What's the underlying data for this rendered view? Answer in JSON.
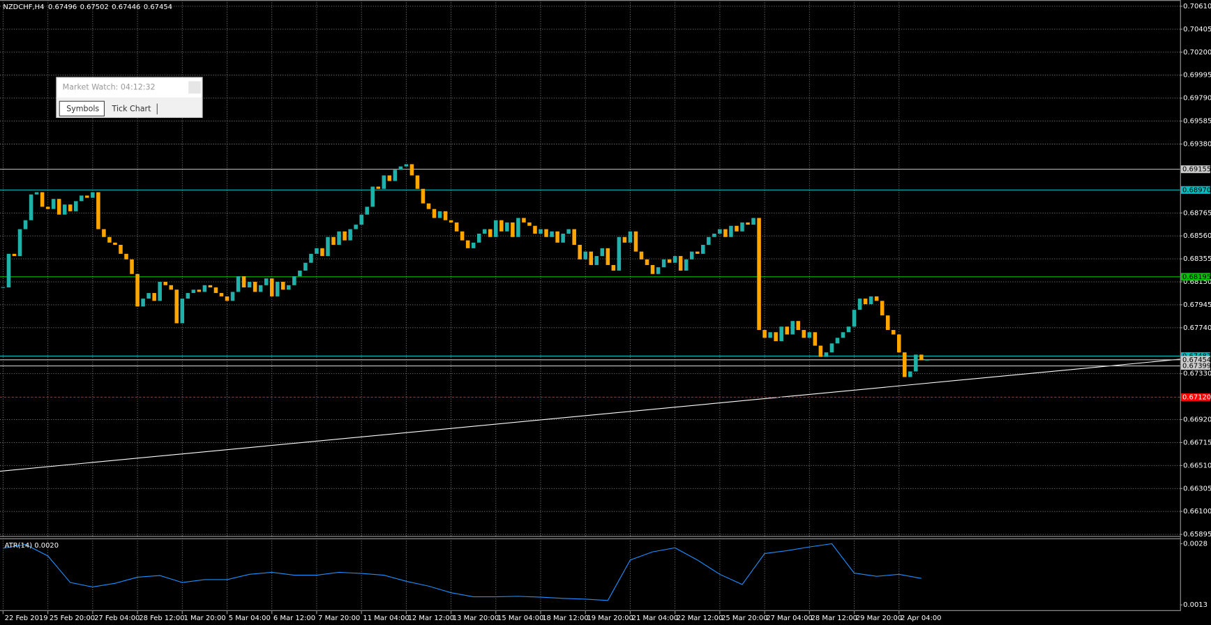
{
  "chart_data": [
    {
      "type": "candlestick",
      "title": "NZDCHF,H4",
      "title_values": [
        0.67496,
        0.67502,
        0.67446,
        0.67454
      ],
      "categories": [
        "22 Feb 2019",
        null,
        null,
        null,
        null,
        null,
        null,
        null,
        "25 Feb 20:00",
        null,
        null,
        null,
        null,
        null,
        null,
        null,
        "27 Feb 04:00",
        null,
        null,
        null,
        null,
        null,
        null,
        null,
        "28 Feb 12:00",
        null,
        null,
        null,
        null,
        null,
        null,
        null,
        "1 Mar 20:00",
        null,
        null,
        null,
        null,
        null,
        null,
        null,
        "5 Mar 04:00",
        null,
        null,
        null,
        null,
        null,
        null,
        null,
        "6 Mar 12:00",
        null,
        null,
        null,
        null,
        null,
        null,
        null,
        "7 Mar 20:00",
        null,
        null,
        null,
        null,
        null,
        null,
        null,
        "11 Mar 04:00",
        null,
        null,
        null,
        null,
        null,
        null,
        null,
        "12 Mar 12:00",
        null,
        null,
        null,
        null,
        null,
        null,
        null,
        "13 Mar 20:00",
        null,
        null,
        null,
        null,
        null,
        null,
        null,
        "15 Mar 04:00",
        null,
        null,
        null,
        null,
        null,
        null,
        null,
        "18 Mar 12:00",
        null,
        null,
        null,
        null,
        null,
        null,
        null,
        "19 Mar 20:00",
        null,
        null,
        null,
        null,
        null,
        null,
        null,
        "21 Mar 04:00",
        null,
        null,
        null,
        null,
        null,
        null,
        null,
        "22 Mar 12:00",
        null,
        null,
        null,
        null,
        null,
        null,
        null,
        "25 Mar 20:00",
        null,
        null,
        null,
        null,
        null,
        null,
        null,
        "27 Mar 04:00",
        null,
        null,
        null,
        null,
        null,
        null,
        null,
        "28 Mar 12:00",
        null,
        null,
        null,
        null,
        null,
        null,
        null,
        "29 Mar 20:00",
        null,
        null,
        null,
        null,
        null,
        null,
        null,
        "2 Apr 04:00",
        null,
        null,
        null,
        null,
        null
      ],
      "closes": [
        0.681,
        0.684,
        0.6838,
        0.6862,
        0.687,
        0.6893,
        0.6895,
        0.6882,
        0.688,
        0.6889,
        0.6875,
        0.6884,
        0.6878,
        0.6887,
        0.6892,
        0.689,
        0.6895,
        0.6862,
        0.6855,
        0.685,
        0.6848,
        0.684,
        0.6835,
        0.6822,
        0.6793,
        0.68,
        0.6805,
        0.6798,
        0.6815,
        0.6812,
        0.6808,
        0.6778,
        0.68,
        0.6805,
        0.6808,
        0.6806,
        0.6812,
        0.681,
        0.6805,
        0.6802,
        0.6798,
        0.6806,
        0.682,
        0.681,
        0.6815,
        0.6806,
        0.6812,
        0.6818,
        0.6802,
        0.6815,
        0.6808,
        0.6812,
        0.682,
        0.6825,
        0.6832,
        0.684,
        0.6845,
        0.6838,
        0.6855,
        0.6848,
        0.686,
        0.6852,
        0.6862,
        0.6866,
        0.6875,
        0.6882,
        0.69,
        0.6898,
        0.691,
        0.6905,
        0.6915,
        0.6918,
        0.692,
        0.691,
        0.6898,
        0.6885,
        0.688,
        0.6872,
        0.6878,
        0.687,
        0.6868,
        0.686,
        0.6852,
        0.6845,
        0.685,
        0.6858,
        0.6862,
        0.6855,
        0.687,
        0.686,
        0.6868,
        0.6855,
        0.6872,
        0.6868,
        0.6865,
        0.6858,
        0.6862,
        0.6855,
        0.686,
        0.685,
        0.6858,
        0.6862,
        0.6848,
        0.6835,
        0.6842,
        0.683,
        0.6838,
        0.6845,
        0.683,
        0.6825,
        0.6855,
        0.685,
        0.686,
        0.6842,
        0.6835,
        0.683,
        0.6822,
        0.6828,
        0.6835,
        0.6832,
        0.6838,
        0.6825,
        0.6835,
        0.6842,
        0.684,
        0.6848,
        0.6855,
        0.6858,
        0.6862,
        0.6855,
        0.6865,
        0.686,
        0.6868,
        0.6866,
        0.6872,
        0.6772,
        0.6765,
        0.677,
        0.6762,
        0.6775,
        0.6768,
        0.678,
        0.6772,
        0.6765,
        0.677,
        0.6758,
        0.6748,
        0.6752,
        0.676,
        0.6765,
        0.677,
        0.6775,
        0.679,
        0.68,
        0.6795,
        0.6802,
        0.6798,
        0.6785,
        0.6772,
        0.6768,
        0.6752,
        0.673,
        0.6735,
        0.675,
        0.6745,
        0.67454
      ],
      "up_color": "#20b2aa",
      "down_color": "#ffa500",
      "xlim": [
        -0.55,
        210.2
      ],
      "ylim": [
        0.6588,
        0.70665
      ],
      "yticks": [
        {
          "value": 0.7061,
          "label": "0.70610"
        },
        0.70405,
        {
          "value": 0.702,
          "label": "0.70200"
        },
        0.69995,
        {
          "value": 0.6979,
          "label": "0.69790"
        },
        0.69585,
        {
          "value": 0.6938,
          "label": "0.69380"
        },
        0.68765,
        {
          "value": 0.6856,
          "label": "0.68560"
        },
        0.68355,
        {
          "value": 0.6815,
          "label": "0.68150"
        },
        0.67945,
        {
          "value": 0.6774,
          "label": "0.67740"
        },
        {
          "value": 0.6733,
          "label": "0.67330"
        },
        {
          "value": 0.6692,
          "label": "0.66920"
        },
        0.66715,
        {
          "value": 0.6651,
          "label": "0.66510"
        },
        0.66305,
        {
          "value": 0.661,
          "label": "0.66100"
        },
        0.65895
      ],
      "levels": [
        {
          "value": 0.69155,
          "color": "#c8c8c8",
          "label_text_color": "#000000"
        },
        {
          "value": 0.6897,
          "label": "0.68970",
          "color": "#00bcbc",
          "label_text_color": "#000000"
        },
        {
          "value": 0.68195,
          "color": "#00c000",
          "label_text_color": "#000000"
        },
        {
          "value": 0.67487,
          "color": "#00bcbc",
          "label_text_color": "#000000"
        },
        {
          "value": 0.67454,
          "color": "#c8c8c8",
          "label_text_color": "#000000"
        },
        {
          "value": 0.67399,
          "color": "#c8c8c8",
          "label_text_color": "#000000"
        },
        {
          "value": 0.6712,
          "label": "0.67120",
          "color": "#ff0000",
          "label_text_color": "#ffffff"
        }
      ],
      "grid": true
    },
    {
      "type": "line",
      "title": "ATR(14) 0.0020",
      "x": [
        0,
        4,
        8,
        12,
        16,
        20,
        24,
        28,
        32,
        36,
        40,
        44,
        48,
        52,
        56,
        60,
        64,
        68,
        72,
        76,
        80,
        84,
        88,
        92,
        96,
        100,
        104,
        108,
        112,
        116,
        120,
        124,
        128,
        132,
        136,
        140,
        144,
        148,
        152,
        156,
        160,
        164
      ],
      "values": [
        0.00269,
        0.00278,
        0.0025,
        0.00185,
        0.00174,
        0.00183,
        0.00198,
        0.00202,
        0.00185,
        0.00192,
        0.00192,
        0.00205,
        0.0021,
        0.00203,
        0.00203,
        0.0021,
        0.00207,
        0.00203,
        0.00188,
        0.00176,
        0.0016,
        0.0015,
        0.0015,
        0.00151,
        0.00149,
        0.00146,
        0.00144,
        0.00141,
        0.0024,
        0.0026,
        0.0027,
        0.0024,
        0.00205,
        0.0018,
        0.00256,
        0.00263,
        0.00272,
        0.0028,
        0.00208,
        0.002,
        0.00205,
        0.00195
      ],
      "color": "#1e90ff",
      "xlim": [
        -0.55,
        210.2
      ],
      "ylim": [
        0.00117,
        0.00293
      ],
      "yticks": [
        0.0028,
        0.0013
      ]
    }
  ],
  "market_watch": {
    "title": "Market Watch: 04:12:32",
    "tabs": [
      "Symbols",
      "Tick Chart"
    ]
  }
}
